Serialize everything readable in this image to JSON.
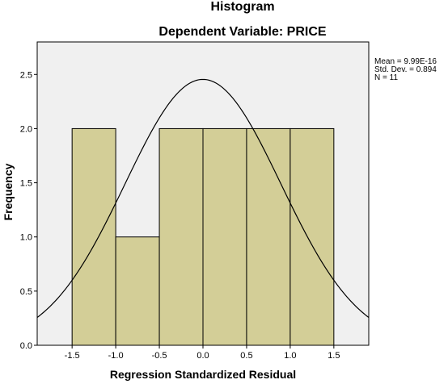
{
  "chart_data": {
    "type": "bar",
    "title": "Histogram",
    "subtitle": "Dependent Variable: PRICE",
    "xlabel": "Regression Standardized Residual",
    "ylabel": "Frequency",
    "xlim": [
      -1.9,
      1.9
    ],
    "ylim": [
      0,
      2.8
    ],
    "xticks": [
      "-1.5",
      "-1.0",
      "-0.5",
      "0.0",
      "0.5",
      "1.0",
      "1.5"
    ],
    "yticks": [
      "0.0",
      "0.5",
      "1.0",
      "1.5",
      "2.0",
      "2.5"
    ],
    "bins": [
      {
        "x0": -1.5,
        "x1": -1.0,
        "value": 2
      },
      {
        "x0": -1.0,
        "x1": -0.5,
        "value": 1
      },
      {
        "x0": -0.5,
        "x1": 0.0,
        "value": 2
      },
      {
        "x0": 0.0,
        "x1": 0.5,
        "value": 2
      },
      {
        "x0": 0.5,
        "x1": 1.0,
        "value": 2
      },
      {
        "x0": 1.0,
        "x1": 1.5,
        "value": 2
      }
    ],
    "normal_curve": {
      "mean": 0,
      "sd": 0.894,
      "n": 11,
      "bin_width": 0.5
    },
    "stats": {
      "mean": "Mean = 9.99E-16",
      "sd": "Std. Dev. = 0.894",
      "n": "N = 11"
    },
    "colors": {
      "bar_fill": "#d3ce97",
      "bar_stroke": "#000000",
      "plot_bg": "#f0f0f0"
    }
  }
}
